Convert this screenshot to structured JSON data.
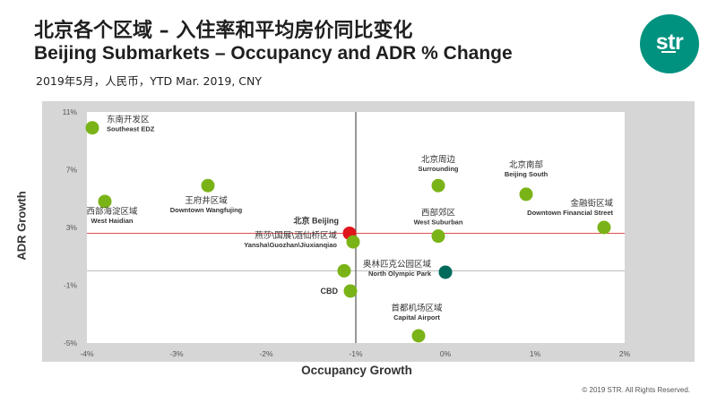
{
  "header": {
    "title_cn": "北京各个区域 – 入住率和平均房价同比变化",
    "title_en": "Beijing Submarkets – Occupancy and ADR % Change",
    "subtitle": "2019年5月，人民币，YTD Mar. 2019, CNY"
  },
  "logo": {
    "text": "str",
    "color": "#00927f"
  },
  "footer": {
    "copyright": "© 2019 STR. All Rights Reserved."
  },
  "chart_data": {
    "type": "scatter",
    "title": "",
    "xlabel": "Occupancy Growth",
    "ylabel": "ADR Growth",
    "xlim": [
      -4,
      2
    ],
    "ylim": [
      -5,
      11
    ],
    "x_ticks": [
      -4,
      -3,
      -2,
      -1,
      0,
      1,
      2
    ],
    "x_tick_labels": [
      "-4%",
      "-3%",
      "-2%",
      "-1%",
      "0%",
      "1%",
      "2%"
    ],
    "y_ticks": [
      -5,
      -1,
      3,
      7,
      11
    ],
    "y_tick_labels": [
      "-5%",
      "-1%",
      "3%",
      "7%",
      "11%"
    ],
    "reference_lines": {
      "x": -1,
      "y": 2.6,
      "y2": 0
    },
    "colors": {
      "default": "#7ab317",
      "beijing": "#e0141b",
      "north_olympic_park": "#006a5b",
      "panel": "#d6d6d6",
      "ref_line": "#d9534f"
    },
    "points": [
      {
        "cn": "东南开发区",
        "en": "Southeast EDZ",
        "x": -3.94,
        "y": 9.9,
        "color": "#7ab317"
      },
      {
        "cn": "西部海淀区域",
        "en": "West Haidian",
        "x": -3.8,
        "y": 4.8,
        "color": "#7ab317"
      },
      {
        "cn": "王府井区域",
        "en": "Downtown Wangfujing",
        "x": -2.65,
        "y": 5.9,
        "color": "#7ab317"
      },
      {
        "cn": "北京周边",
        "en": "Surrounding",
        "x": -0.08,
        "y": 5.9,
        "color": "#7ab317"
      },
      {
        "cn": "北京南部",
        "en": "Beijing South",
        "x": 0.9,
        "y": 5.3,
        "color": "#7ab317"
      },
      {
        "cn": "金融街区域",
        "en": "Downtown Financial Street",
        "x": 1.77,
        "y": 3.0,
        "color": "#7ab317"
      },
      {
        "cn": "西部郊区",
        "en": "West Suburban",
        "x": -0.08,
        "y": 2.4,
        "color": "#7ab317"
      },
      {
        "cn": "北京",
        "en": "Beijing",
        "x": -1.07,
        "y": 2.6,
        "color": "#e0141b"
      },
      {
        "cn": "燕莎\\国展\\酒仙桥区域",
        "en": "Yansha\\Guozhan\\Jiuxianqiao",
        "x": -1.03,
        "y": 2.0,
        "color": "#7ab317"
      },
      {
        "cn": "",
        "en": "",
        "x": -1.13,
        "y": 0.0,
        "color": "#7ab317"
      },
      {
        "cn": "奥林匹克公园区域",
        "en": "North Olympic Park",
        "x": 0.0,
        "y": -0.1,
        "color": "#006a5b"
      },
      {
        "cn": "",
        "en": "CBD",
        "x": -1.06,
        "y": -1.4,
        "color": "#7ab317"
      },
      {
        "cn": "首都机场区域",
        "en": "Capital Airport",
        "x": -0.3,
        "y": -4.5,
        "color": "#7ab317"
      }
    ]
  }
}
